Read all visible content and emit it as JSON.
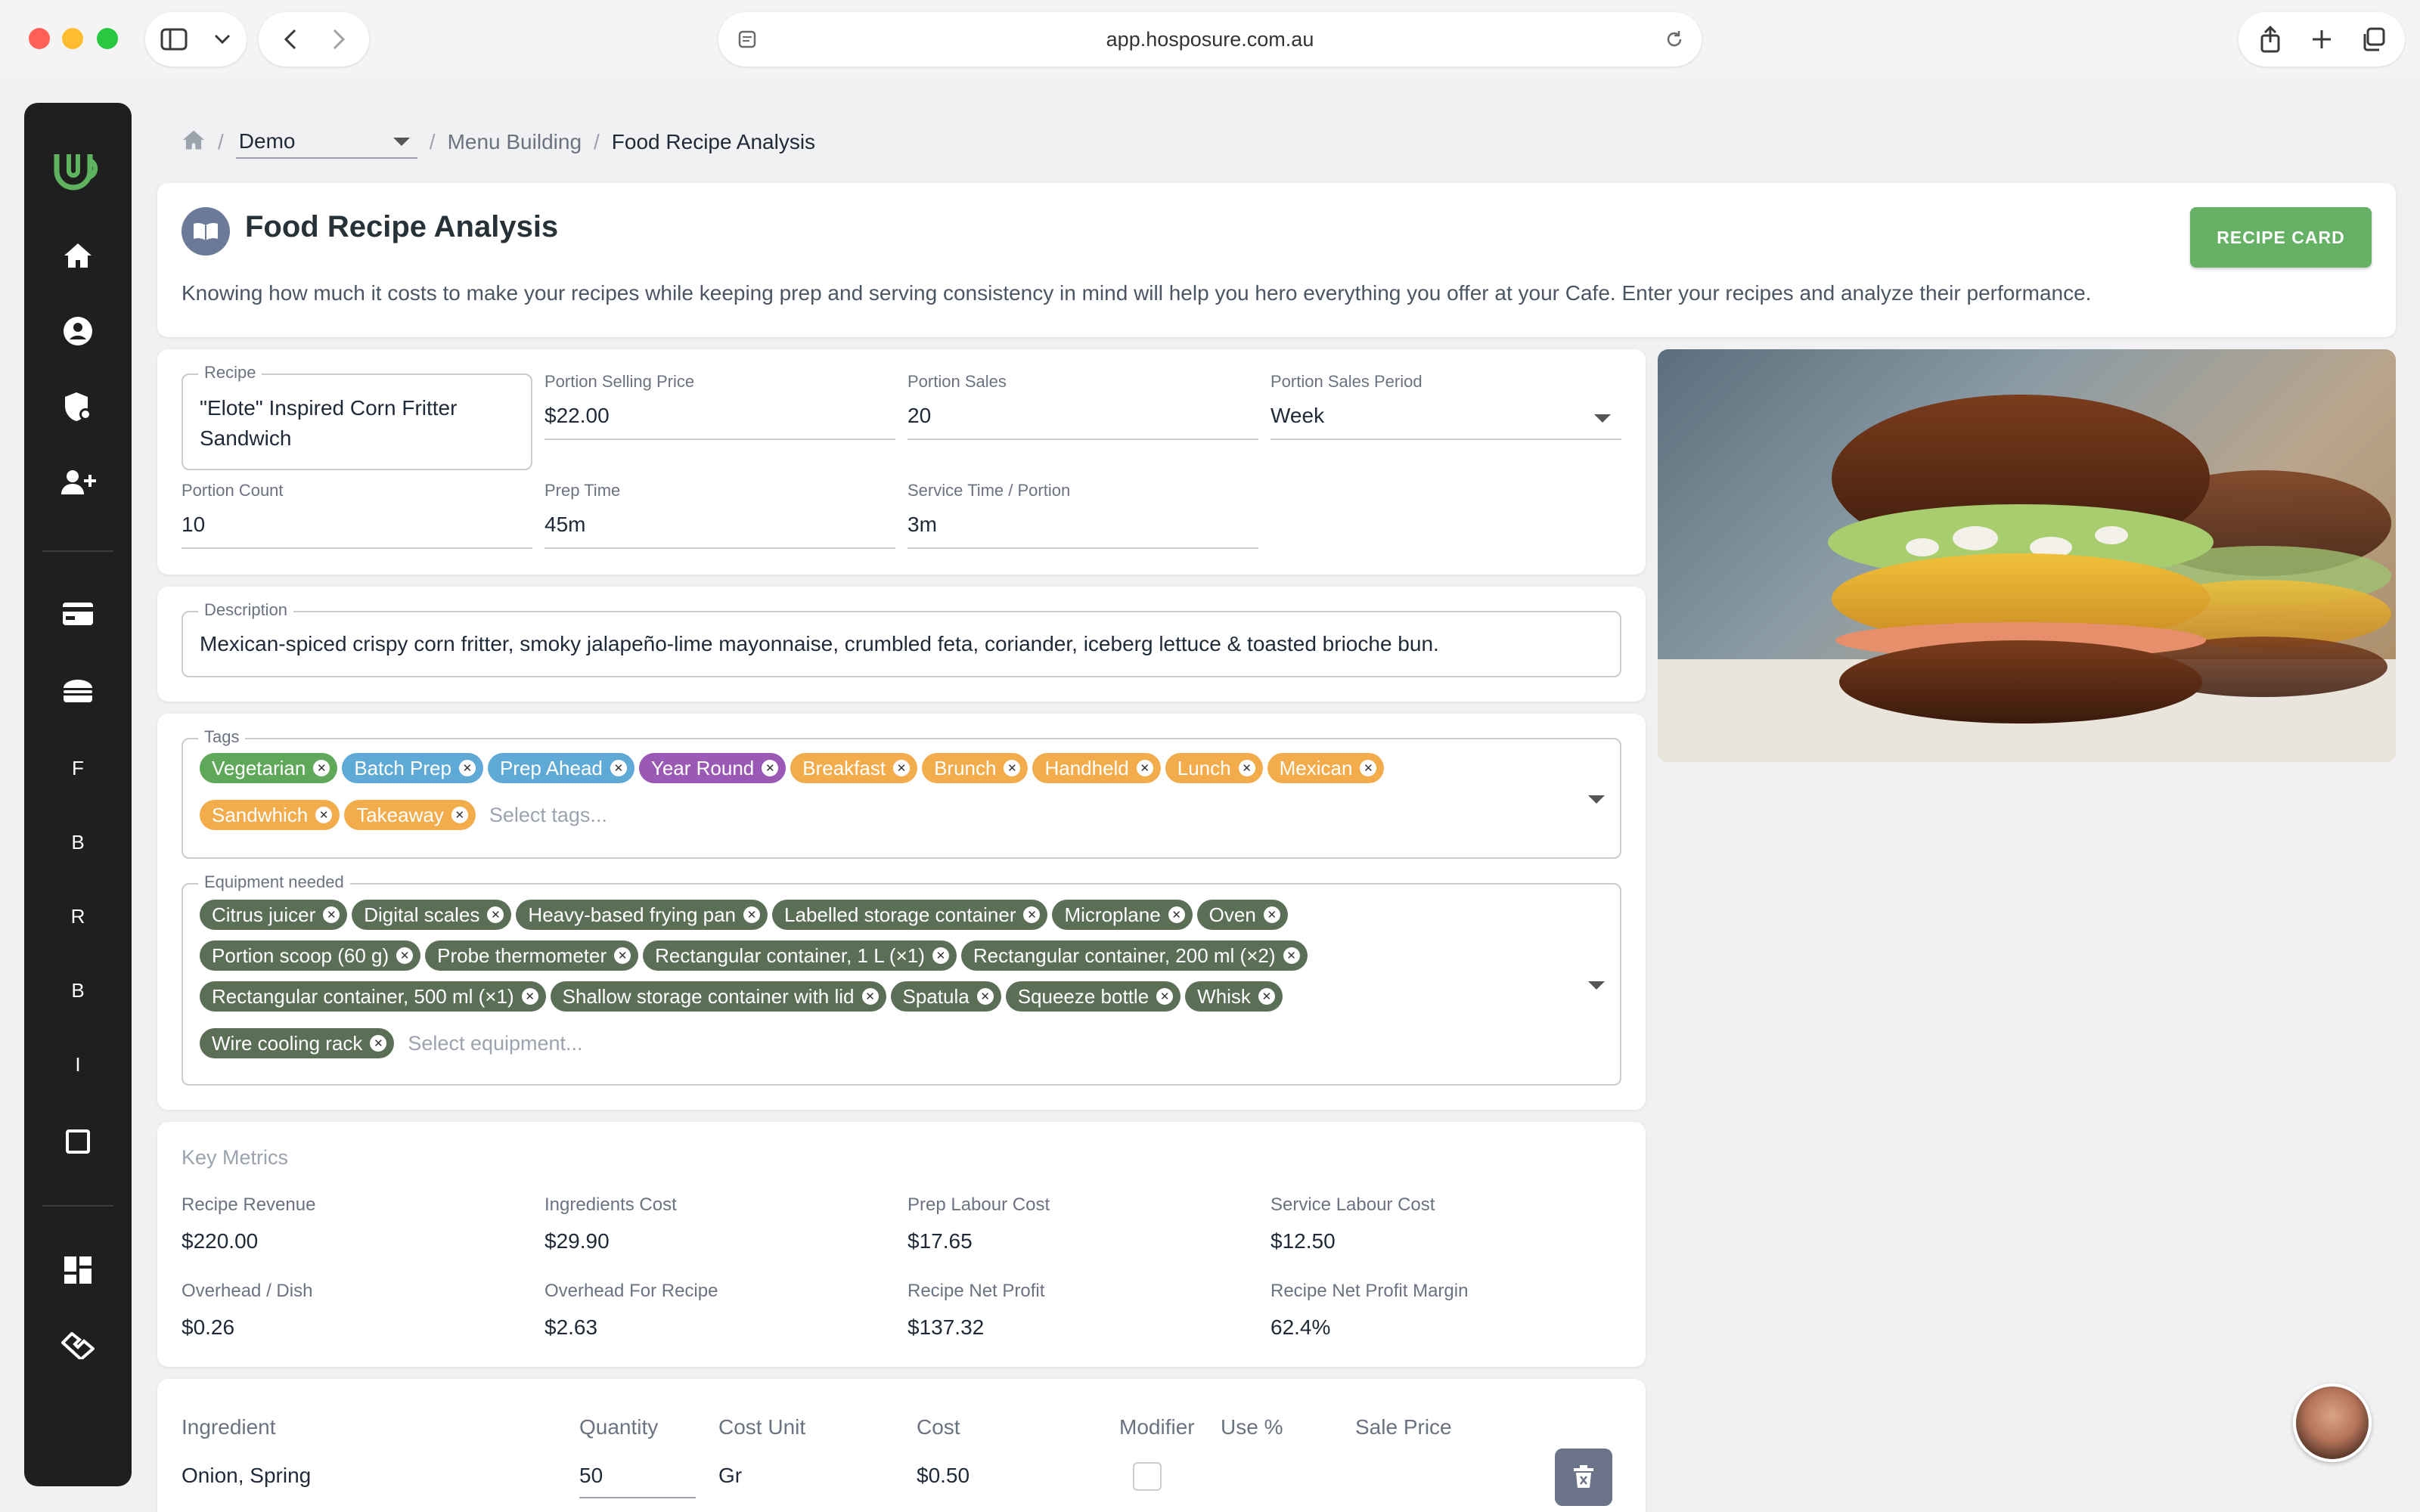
{
  "browser": {
    "url": "app.hosposure.com.au"
  },
  "breadcrumb": {
    "venue": "Demo",
    "section": "Menu Building",
    "current": "Food Recipe Analysis"
  },
  "header": {
    "title": "Food Recipe Analysis",
    "description": "Knowing how much it costs to make your recipes while keeping prep and serving consistency in mind will help you hero everything you offer at your Cafe. Enter your recipes and analyze their performance.",
    "recipe_card_label": "RECIPE CARD"
  },
  "sidebar": {
    "letters": [
      "F",
      "B",
      "R",
      "B",
      "I"
    ]
  },
  "recipe": {
    "recipe_label": "Recipe",
    "recipe_name": "\"Elote\" Inspired Corn Fritter Sandwich",
    "portion_selling_price_label": "Portion Selling Price",
    "portion_selling_price": "$22.00",
    "portion_sales_label": "Portion Sales",
    "portion_sales": "20",
    "portion_sales_period_label": "Portion Sales Period",
    "portion_sales_period": "Week",
    "portion_count_label": "Portion Count",
    "portion_count": "10",
    "prep_time_label": "Prep Time",
    "prep_time": "45m",
    "service_time_label": "Service Time / Portion",
    "service_time": "3m"
  },
  "description": {
    "label": "Description",
    "value": "Mexican-spiced crispy corn fritter, smoky jalapeño-lime mayonnaise, crumbled feta, coriander, iceberg lettuce & toasted brioche bun."
  },
  "tags": {
    "label": "Tags",
    "placeholder": "Select tags...",
    "items": [
      {
        "label": "Vegetarian",
        "color": "#5fa85a"
      },
      {
        "label": "Batch Prep",
        "color": "#5ea9d6"
      },
      {
        "label": "Prep Ahead",
        "color": "#5ea9d6"
      },
      {
        "label": "Year Round",
        "color": "#9b59b6"
      },
      {
        "label": "Breakfast",
        "color": "#f3ac4c"
      },
      {
        "label": "Brunch",
        "color": "#f3ac4c"
      },
      {
        "label": "Handheld",
        "color": "#f3ac4c"
      },
      {
        "label": "Lunch",
        "color": "#f3ac4c"
      },
      {
        "label": "Mexican",
        "color": "#f3ac4c"
      },
      {
        "label": "Sandwhich",
        "color": "#f3ac4c"
      },
      {
        "label": "Takeaway",
        "color": "#f3ac4c"
      }
    ]
  },
  "equipment": {
    "label": "Equipment needed",
    "placeholder": "Select equipment...",
    "color": "#5b6f57",
    "items": [
      "Citrus juicer",
      "Digital scales",
      "Heavy-based frying pan",
      "Labelled storage container",
      "Microplane",
      "Oven",
      "Portion scoop (60 g)",
      "Probe thermometer",
      "Rectangular container, 1 L (×1)",
      "Rectangular container, 200 ml (×2)",
      "Rectangular container, 500 ml (×1)",
      "Shallow storage container with lid",
      "Spatula",
      "Squeeze bottle",
      "Whisk",
      "Wire cooling rack"
    ]
  },
  "metrics": {
    "title": "Key Metrics",
    "items": [
      {
        "label": "Recipe Revenue",
        "value": "$220.00"
      },
      {
        "label": "Ingredients Cost",
        "value": "$29.90"
      },
      {
        "label": "Prep Labour Cost",
        "value": "$17.65"
      },
      {
        "label": "Service Labour Cost",
        "value": "$12.50"
      },
      {
        "label": "Overhead / Dish",
        "value": "$0.26"
      },
      {
        "label": "Overhead For Recipe",
        "value": "$2.63"
      },
      {
        "label": "Recipe Net Profit",
        "value": "$137.32"
      },
      {
        "label": "Recipe Net Profit Margin",
        "value": "62.4%"
      }
    ]
  },
  "ingredients": {
    "headers": {
      "ingredient": "Ingredient",
      "quantity": "Quantity",
      "cost_unit": "Cost Unit",
      "cost": "Cost",
      "modifier": "Modifier",
      "use_pct": "Use %",
      "sale_price": "Sale Price"
    },
    "rows": [
      {
        "ingredient": "Onion, Spring",
        "quantity": "50",
        "cost_unit": "Gr",
        "cost": "$0.50",
        "modifier": false
      }
    ]
  },
  "colors": {
    "brand_green": "#66b166",
    "sidebar_bg": "#1f1f1f"
  }
}
